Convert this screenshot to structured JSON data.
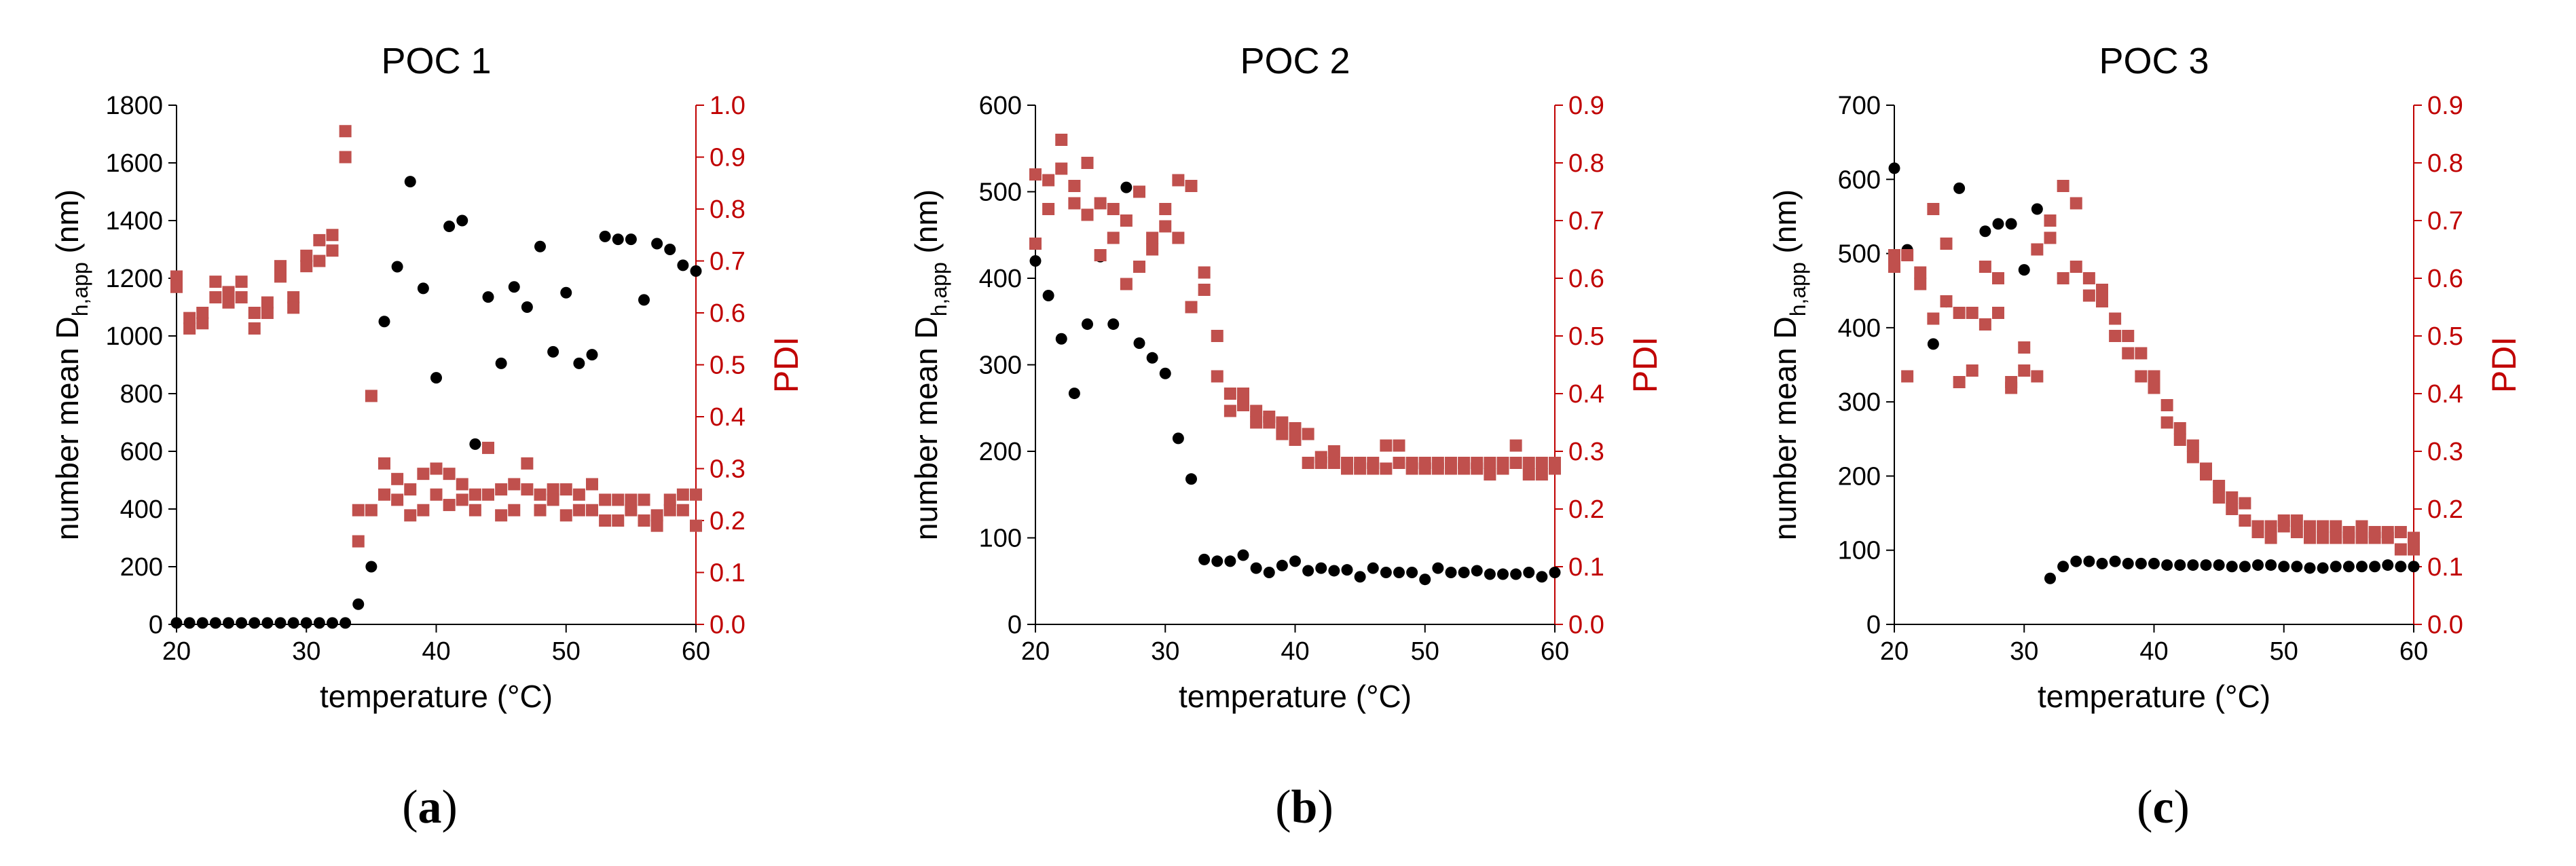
{
  "colors": {
    "dh_series": "#000000",
    "pdi_series": "#c0504d",
    "pdi_axis": "#c00000"
  },
  "chart_data": [
    {
      "type": "scatter",
      "panel_label": "a",
      "title": "POC 1",
      "xlabel": "temperature (°C)",
      "ylabel_prefix": "number mean D",
      "ylabel_sub": "h,app",
      "ylabel_suffix": " (nm)",
      "y2label": "PDI",
      "xlim": [
        20,
        60
      ],
      "xticks": [
        20,
        30,
        40,
        50,
        60
      ],
      "ylim": [
        0,
        1800
      ],
      "yticks": [
        0,
        200,
        400,
        600,
        800,
        1000,
        1200,
        1400,
        1600,
        1800
      ],
      "y2lim": [
        0,
        1.0
      ],
      "y2ticks": [
        0.0,
        0.1,
        0.2,
        0.3,
        0.4,
        0.5,
        0.6,
        0.7,
        0.8,
        0.9,
        1.0
      ],
      "series": [
        {
          "name": "number mean Dh,app",
          "axis": "left",
          "marker": "circle",
          "x": [
            20,
            21,
            22,
            23,
            24,
            25,
            26,
            27,
            28,
            29,
            30,
            31,
            32,
            33,
            34,
            35,
            36,
            37,
            38,
            39,
            40,
            41,
            42,
            43,
            44,
            45,
            46,
            47,
            48,
            49,
            50,
            51,
            52,
            53,
            54,
            55,
            56,
            57,
            58,
            59,
            60
          ],
          "y": [
            5,
            5,
            5,
            5,
            5,
            5,
            5,
            5,
            5,
            5,
            5,
            5,
            5,
            5,
            70,
            200,
            1050,
            1240,
            1535,
            1165,
            855,
            1380,
            1400,
            625,
            1135,
            905,
            1170,
            1100,
            1310,
            945,
            1150,
            905,
            935,
            1345,
            1335,
            1335,
            1125,
            1320,
            1300,
            1245,
            1225
          ]
        },
        {
          "name": "PDI",
          "axis": "right",
          "marker": "square",
          "x": [
            20,
            20,
            21,
            21,
            22,
            22,
            23,
            23,
            24,
            24,
            25,
            25,
            26,
            26,
            27,
            27,
            28,
            28,
            29,
            29,
            30,
            30,
            31,
            31,
            32,
            32,
            33,
            33,
            34,
            34,
            35,
            35,
            36,
            36,
            37,
            37,
            38,
            38,
            39,
            39,
            40,
            40,
            41,
            41,
            42,
            42,
            43,
            43,
            44,
            44,
            45,
            45,
            46,
            46,
            47,
            47,
            48,
            48,
            49,
            49,
            50,
            50,
            51,
            51,
            52,
            52,
            53,
            53,
            54,
            54,
            55,
            55,
            56,
            56,
            57,
            57,
            58,
            58,
            59,
            59,
            60,
            60
          ],
          "y": [
            0.67,
            0.65,
            0.59,
            0.57,
            0.6,
            0.58,
            0.66,
            0.63,
            0.64,
            0.62,
            0.66,
            0.63,
            0.6,
            0.57,
            0.62,
            0.6,
            0.69,
            0.67,
            0.63,
            0.61,
            0.71,
            0.69,
            0.74,
            0.7,
            0.75,
            0.72,
            0.95,
            0.9,
            0.22,
            0.16,
            0.44,
            0.22,
            0.31,
            0.25,
            0.28,
            0.24,
            0.26,
            0.21,
            0.29,
            0.22,
            0.3,
            0.25,
            0.29,
            0.23,
            0.27,
            0.24,
            0.25,
            0.22,
            0.34,
            0.25,
            0.26,
            0.21,
            0.27,
            0.22,
            0.31,
            0.26,
            0.25,
            0.22,
            0.26,
            0.24,
            0.26,
            0.21,
            0.25,
            0.22,
            0.27,
            0.22,
            0.24,
            0.2,
            0.24,
            0.2,
            0.24,
            0.22,
            0.24,
            0.2,
            0.21,
            0.19,
            0.24,
            0.22,
            0.25,
            0.22,
            0.25,
            0.19
          ]
        }
      ]
    },
    {
      "type": "scatter",
      "panel_label": "b",
      "title": "POC 2",
      "xlabel": "temperature (°C)",
      "ylabel_prefix": "number mean D",
      "ylabel_sub": "h,app",
      "ylabel_suffix": " (nm)",
      "y2label": "PDI",
      "xlim": [
        20,
        60
      ],
      "xticks": [
        20,
        30,
        40,
        50,
        60
      ],
      "ylim": [
        0,
        600
      ],
      "yticks": [
        0,
        100,
        200,
        300,
        400,
        500,
        600
      ],
      "y2lim": [
        0,
        0.9
      ],
      "y2ticks": [
        0.0,
        0.1,
        0.2,
        0.3,
        0.4,
        0.5,
        0.6,
        0.7,
        0.8,
        0.9
      ],
      "series": [
        {
          "name": "number mean Dh,app",
          "axis": "left",
          "marker": "circle",
          "x": [
            20,
            21,
            22,
            23,
            24,
            25,
            26,
            27,
            28,
            29,
            30,
            31,
            32,
            33,
            34,
            35,
            36,
            37,
            38,
            39,
            40,
            41,
            42,
            43,
            44,
            45,
            46,
            47,
            48,
            49,
            50,
            51,
            52,
            53,
            54,
            55,
            56,
            57,
            58,
            59,
            60
          ],
          "y": [
            420,
            380,
            330,
            267,
            347,
            425,
            347,
            505,
            325,
            308,
            290,
            215,
            168,
            75,
            73,
            73,
            80,
            65,
            60,
            68,
            73,
            62,
            65,
            62,
            63,
            55,
            65,
            60,
            60,
            60,
            52,
            65,
            60,
            60,
            62,
            58,
            58,
            58,
            60,
            55,
            60
          ]
        },
        {
          "name": "PDI",
          "axis": "right",
          "marker": "square",
          "x": [
            20,
            20,
            21,
            21,
            22,
            22,
            23,
            23,
            24,
            24,
            25,
            25,
            26,
            26,
            27,
            27,
            28,
            28,
            29,
            29,
            30,
            30,
            31,
            31,
            32,
            32,
            33,
            33,
            34,
            34,
            35,
            35,
            36,
            36,
            37,
            37,
            38,
            38,
            39,
            39,
            40,
            40,
            41,
            41,
            42,
            42,
            43,
            43,
            44,
            44,
            45,
            45,
            46,
            46,
            47,
            47,
            48,
            48,
            49,
            49,
            50,
            50,
            51,
            51,
            52,
            52,
            53,
            53,
            54,
            54,
            55,
            55,
            56,
            56,
            57,
            57,
            58,
            58,
            59,
            59,
            60,
            60
          ],
          "y": [
            0.78,
            0.66,
            0.77,
            0.72,
            0.84,
            0.79,
            0.76,
            0.73,
            0.8,
            0.71,
            0.73,
            0.64,
            0.72,
            0.67,
            0.7,
            0.59,
            0.75,
            0.62,
            0.67,
            0.65,
            0.72,
            0.69,
            0.77,
            0.67,
            0.76,
            0.55,
            0.61,
            0.58,
            0.5,
            0.43,
            0.4,
            0.37,
            0.4,
            0.38,
            0.37,
            0.35,
            0.36,
            0.35,
            0.35,
            0.33,
            0.34,
            0.32,
            0.33,
            0.28,
            0.29,
            0.28,
            0.3,
            0.28,
            0.28,
            0.27,
            0.28,
            0.27,
            0.28,
            0.27,
            0.31,
            0.27,
            0.31,
            0.28,
            0.28,
            0.27,
            0.28,
            0.27,
            0.28,
            0.27,
            0.28,
            0.27,
            0.28,
            0.27,
            0.28,
            0.27,
            0.28,
            0.26,
            0.28,
            0.27,
            0.31,
            0.28,
            0.28,
            0.26,
            0.28,
            0.26,
            0.28,
            0.27
          ]
        }
      ]
    },
    {
      "type": "scatter",
      "panel_label": "c",
      "title": "POC 3",
      "xlabel": "temperature (°C)",
      "ylabel_prefix": "number mean D",
      "ylabel_sub": "h,app",
      "ylabel_suffix": " (nm)",
      "y2label": "PDI",
      "xlim": [
        20,
        60
      ],
      "xticks": [
        20,
        30,
        40,
        50,
        60
      ],
      "ylim": [
        0,
        700
      ],
      "yticks": [
        0,
        100,
        200,
        300,
        400,
        500,
        600,
        700
      ],
      "y2lim": [
        0,
        0.9
      ],
      "y2ticks": [
        0.0,
        0.1,
        0.2,
        0.3,
        0.4,
        0.5,
        0.6,
        0.7,
        0.8,
        0.9
      ],
      "series": [
        {
          "name": "number mean Dh,app",
          "axis": "left",
          "marker": "circle",
          "x": [
            20,
            21,
            23,
            24,
            25,
            27,
            28,
            29,
            30,
            31,
            32,
            33,
            34,
            35,
            36,
            37,
            38,
            39,
            40,
            41,
            42,
            43,
            44,
            45,
            46,
            47,
            48,
            49,
            50,
            51,
            52,
            53,
            54,
            55,
            56,
            57,
            58,
            59,
            60
          ],
          "y": [
            615,
            505,
            378,
            435,
            588,
            530,
            540,
            540,
            478,
            560,
            62,
            78,
            85,
            85,
            82,
            85,
            82,
            82,
            82,
            80,
            80,
            80,
            80,
            80,
            78,
            78,
            80,
            80,
            78,
            78,
            76,
            76,
            78,
            78,
            78,
            78,
            80,
            78,
            78
          ]
        },
        {
          "name": "PDI",
          "axis": "right",
          "marker": "square",
          "x": [
            20,
            20,
            21,
            21,
            22,
            22,
            23,
            23,
            24,
            24,
            25,
            25,
            26,
            26,
            27,
            27,
            28,
            28,
            29,
            29,
            30,
            30,
            31,
            31,
            32,
            32,
            33,
            33,
            34,
            34,
            35,
            35,
            36,
            36,
            37,
            37,
            38,
            38,
            39,
            39,
            40,
            40,
            41,
            41,
            42,
            42,
            43,
            43,
            44,
            44,
            45,
            45,
            46,
            46,
            47,
            47,
            48,
            48,
            49,
            49,
            50,
            50,
            51,
            51,
            52,
            52,
            53,
            53,
            54,
            54,
            55,
            55,
            56,
            56,
            57,
            57,
            58,
            58,
            59,
            59,
            60,
            60
          ],
          "y": [
            0.64,
            0.62,
            0.43,
            0.64,
            0.61,
            0.59,
            0.72,
            0.53,
            0.66,
            0.56,
            0.54,
            0.42,
            0.54,
            0.44,
            0.62,
            0.52,
            0.6,
            0.54,
            0.42,
            0.41,
            0.48,
            0.44,
            0.65,
            0.43,
            0.7,
            0.67,
            0.76,
            0.6,
            0.73,
            0.62,
            0.6,
            0.57,
            0.58,
            0.56,
            0.53,
            0.5,
            0.5,
            0.47,
            0.47,
            0.43,
            0.43,
            0.41,
            0.38,
            0.35,
            0.34,
            0.32,
            0.31,
            0.29,
            0.27,
            0.26,
            0.24,
            0.22,
            0.22,
            0.2,
            0.21,
            0.18,
            0.17,
            0.16,
            0.17,
            0.15,
            0.18,
            0.17,
            0.18,
            0.16,
            0.17,
            0.15,
            0.17,
            0.15,
            0.17,
            0.15,
            0.16,
            0.15,
            0.17,
            0.15,
            0.16,
            0.15,
            0.16,
            0.15,
            0.16,
            0.13,
            0.15,
            0.13
          ]
        }
      ]
    }
  ]
}
